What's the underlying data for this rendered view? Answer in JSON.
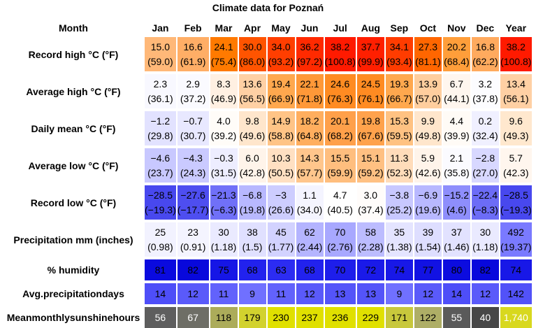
{
  "title": "Climate data for Poznań",
  "header": {
    "corner": "Month",
    "months": [
      "Jan",
      "Feb",
      "Mar",
      "Apr",
      "May",
      "Jun",
      "Jul",
      "Aug",
      "Sep",
      "Oct",
      "Nov",
      "Dec",
      "Year"
    ]
  },
  "rows": [
    {
      "label": "Record high °C (°F)",
      "values": [
        "15.0",
        "16.6",
        "24.1",
        "30.0",
        "34.0",
        "36.2",
        "38.2",
        "37.7",
        "34.1",
        "27.3",
        "20.2",
        "16.8",
        "38.2"
      ],
      "secondary": [
        "(59.0)",
        "(61.9)",
        "(75.4)",
        "(86.0)",
        "(93.2)",
        "(97.2)",
        "(100.8)",
        "(99.9)",
        "(93.4)",
        "(81.1)",
        "(68.4)",
        "(62.2)",
        "(100.8)"
      ],
      "colors": [
        "#FFB878",
        "#FFAE66",
        "#FF7A00",
        "#FF5400",
        "#FF3E00",
        "#FF2A00",
        "#FF1A00",
        "#FF1F00",
        "#FF3C00",
        "#FF6600",
        "#FF9E3A",
        "#FFAA5E",
        "#FF1A00"
      ]
    },
    {
      "label": "Average high °C (°F)",
      "values": [
        "2.3",
        "2.9",
        "8.3",
        "13.6",
        "19.4",
        "22.1",
        "24.6",
        "24.5",
        "19.3",
        "13.9",
        "6.7",
        "3.2",
        "13.4"
      ],
      "secondary": [
        "(36.1)",
        "(37.2)",
        "(46.9)",
        "(56.5)",
        "(66.9)",
        "(71.8)",
        "(76.3)",
        "(76.1)",
        "(66.7)",
        "(57.0)",
        "(44.1)",
        "(37.8)",
        "(56.1)"
      ],
      "colors": [
        "#F8F8FF",
        "#FAFAFF",
        "#FFF0E2",
        "#FFD0A4",
        "#FFA84E",
        "#FF9838",
        "#FF8B22",
        "#FF8B22",
        "#FFA84E",
        "#FFCE9E",
        "#FFF6EE",
        "#FCFCFF",
        "#FFD0A4"
      ]
    },
    {
      "label": "Daily mean °C (°F)",
      "values": [
        "−1.2",
        "−0.7",
        "4.0",
        "9.8",
        "14.9",
        "18.2",
        "20.1",
        "19.8",
        "15.3",
        "9.9",
        "4.4",
        "0.2",
        "9.6"
      ],
      "secondary": [
        "(29.8)",
        "(30.7)",
        "(39.2)",
        "(49.6)",
        "(58.8)",
        "(64.8)",
        "(68.2)",
        "(67.6)",
        "(59.5)",
        "(49.8)",
        "(39.9)",
        "(32.4)",
        "(49.3)"
      ],
      "colors": [
        "#E2E2FF",
        "#E8E8FF",
        "#FFFCF8",
        "#FFE6CC",
        "#FFC486",
        "#FFAE5E",
        "#FFA04A",
        "#FFA24C",
        "#FFC282",
        "#FFE6CC",
        "#FFFBF6",
        "#F0F0FF",
        "#FFE8CE"
      ]
    },
    {
      "label": "Average low °C (°F)",
      "values": [
        "−4.6",
        "−4.3",
        "−0.3",
        "6.0",
        "10.3",
        "14.3",
        "15.5",
        "15.1",
        "11.3",
        "5.9",
        "2.1",
        "−2.8",
        "5.7"
      ],
      "secondary": [
        "(23.7)",
        "(24.3)",
        "(31.5)",
        "(42.8)",
        "(50.5)",
        "(57.7)",
        "(59.9)",
        "(59.2)",
        "(52.3)",
        "(42.6)",
        "(35.8)",
        "(27.0)",
        "(42.3)"
      ],
      "colors": [
        "#C8C8FF",
        "#CACAFF",
        "#EDEDFF",
        "#FFF4EA",
        "#FFE0C2",
        "#FFC68C",
        "#FFBE7E",
        "#FFC082",
        "#FFDCBA",
        "#FFF4EA",
        "#FBFBFF",
        "#D8D8FF",
        "#FFF6EE"
      ]
    },
    {
      "label": "Record low °C (°F)",
      "values": [
        "−28.5",
        "−27.6",
        "−21.3",
        "−6.8",
        "−3",
        "1.1",
        "4.7",
        "3.0",
        "−3.8",
        "−6.9",
        "−15.2",
        "−22.4",
        "−28.5"
      ],
      "secondary": [
        "(−19.3)",
        "(−17.7)",
        "(−6.3)",
        "(19.8)",
        "(26.6)",
        "(34.0)",
        "(40.5)",
        "(37.4)",
        "(25.2)",
        "(19.6)",
        "(4.6)",
        "(−8.3)",
        "(−19.3)"
      ],
      "colors": [
        "#4848EE",
        "#4E4EF0",
        "#7070F8",
        "#B8B8FF",
        "#CDCDFF",
        "#F4F4FF",
        "#FFFFFF",
        "#FFFCFA",
        "#C8C8FF",
        "#B8B8FF",
        "#8E8EFC",
        "#6C6CF6",
        "#4848EE"
      ]
    },
    {
      "label": "Precipitation mm (inches)",
      "values": [
        "25",
        "23",
        "30",
        "38",
        "45",
        "62",
        "70",
        "58",
        "35",
        "39",
        "37",
        "30",
        "492"
      ],
      "secondary": [
        "(0.98)",
        "(0.91)",
        "(1.18)",
        "(1.5)",
        "(1.77)",
        "(2.44)",
        "(2.76)",
        "(2.28)",
        "(1.38)",
        "(1.54)",
        "(1.46)",
        "(1.18)",
        "(19.37)"
      ],
      "colors": [
        "#F2F2FF",
        "#F4F4FF",
        "#EAEAFF",
        "#E0E0FF",
        "#D2D2FF",
        "#B4B4FF",
        "#A8A8FF",
        "#BCBCFF",
        "#E4E4FF",
        "#DEDEFF",
        "#E2E2FF",
        "#EAEAFF",
        "#7A7AFF"
      ]
    },
    {
      "label": "% humidity",
      "values": [
        "81",
        "82",
        "75",
        "68",
        "63",
        "68",
        "70",
        "72",
        "74",
        "77",
        "80",
        "82",
        "74"
      ],
      "colors": [
        "#0A0ADF",
        "#0808DC",
        "#1616E6",
        "#2222EE",
        "#2C2CF2",
        "#2222EE",
        "#1E1EEB",
        "#1A1AE9",
        "#1818E7",
        "#1212E3",
        "#0C0CDF",
        "#0808DC",
        "#1818E7"
      ]
    },
    {
      "label": "Avg.precipitationdays",
      "values": [
        "14",
        "12",
        "11",
        "9",
        "11",
        "12",
        "13",
        "13",
        "9",
        "12",
        "14",
        "12",
        "142"
      ],
      "colors": [
        "#4E4EF8",
        "#5A5AFA",
        "#6262FC",
        "#7070FF",
        "#6262FC",
        "#5A5AFA",
        "#5454F9",
        "#5454F9",
        "#7070FF",
        "#5A5AFA",
        "#4E4EF8",
        "#5A5AFA",
        "#5252F8"
      ]
    },
    {
      "label": "Meanmonthlysunshinehours",
      "values": [
        "56",
        "67",
        "118",
        "179",
        "230",
        "237",
        "236",
        "229",
        "171",
        "122",
        "55",
        "40",
        "1,740"
      ],
      "colors": [
        "#5E5E5E",
        "#6E6E66",
        "#ACAC5A",
        "#D2D22E",
        "#E0E000",
        "#E0E000",
        "#E0E000",
        "#E0E000",
        "#C8C83C",
        "#AEAE66",
        "#5A5A5A",
        "#474747",
        "#D8D81E"
      ],
      "text_colors": [
        "#FFFFFF",
        "#FFFFFF",
        "#000000",
        "#000000",
        "#000000",
        "#000000",
        "#000000",
        "#000000",
        "#000000",
        "#000000",
        "#FFFFFF",
        "#FFFFFF",
        "#FFFFFF"
      ]
    }
  ]
}
